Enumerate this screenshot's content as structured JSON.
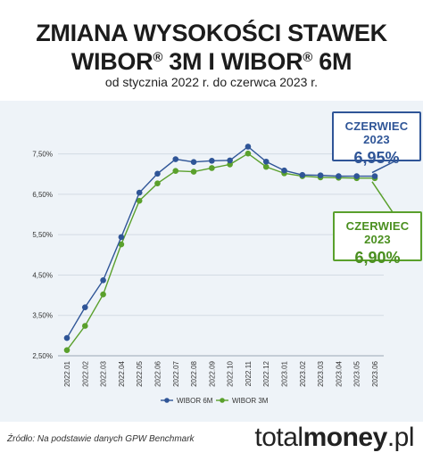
{
  "header": {
    "title_line1": "ZMIANA WYSOKOŚCI STAWEK",
    "title_w1": "WIBOR",
    "title_mid": " 3M I ",
    "title_w2": "WIBOR",
    "title_end": " 6M",
    "reg_mark": "®",
    "subtitle": "od stycznia 2022 r. do czerwca 2023 r."
  },
  "callouts": {
    "wibor6m": {
      "label": "CZERWIEC 2023",
      "value": "6,95%",
      "color": "#2f5597"
    },
    "wibor3m": {
      "label": "CZERWIEC 2023",
      "value": "6,90%",
      "color": "#5aa02c"
    }
  },
  "chart_data": {
    "type": "line",
    "title": "ZMIANA WYSOKOŚCI STAWEK WIBOR® 3M I WIBOR® 6M",
    "subtitle": "od stycznia 2022 r. do czerwca 2023 r.",
    "categories": [
      "2022.01",
      "2022.02",
      "2022.03",
      "2022.04",
      "2022.05",
      "2022.06",
      "2022.07",
      "2022.08",
      "2022.09",
      "2022.10",
      "2022.11",
      "2022.12",
      "2023.01",
      "2023.02",
      "2023.03",
      "2023.04",
      "2023.05",
      "2023.06"
    ],
    "ylim": [
      2.5,
      8.0
    ],
    "yticks": [
      2.5,
      3.5,
      4.5,
      5.5,
      6.5,
      7.5
    ],
    "ytick_labels": [
      "2,50%",
      "3,50%",
      "4,50%",
      "5,50%",
      "6,50%",
      "7,50%"
    ],
    "grid": true,
    "legend": "bottom",
    "series": [
      {
        "name": "WIBOR 6M",
        "color": "#2f5597",
        "values": [
          2.94,
          3.7,
          4.37,
          5.44,
          6.54,
          7.01,
          7.37,
          7.3,
          7.33,
          7.34,
          7.68,
          7.31,
          7.09,
          6.98,
          6.97,
          6.95,
          6.95,
          6.95
        ]
      },
      {
        "name": "WIBOR 3M",
        "color": "#5aa02c",
        "values": [
          2.64,
          3.24,
          4.02,
          5.26,
          6.34,
          6.77,
          7.08,
          7.06,
          7.15,
          7.24,
          7.51,
          7.18,
          7.02,
          6.95,
          6.92,
          6.91,
          6.9,
          6.9
        ]
      }
    ]
  },
  "footer": {
    "source": "Źródło: Na podstawie danych GPW Benchmark",
    "brand_light": "total",
    "brand_bold": "money",
    "brand_suffix": ".pl"
  }
}
